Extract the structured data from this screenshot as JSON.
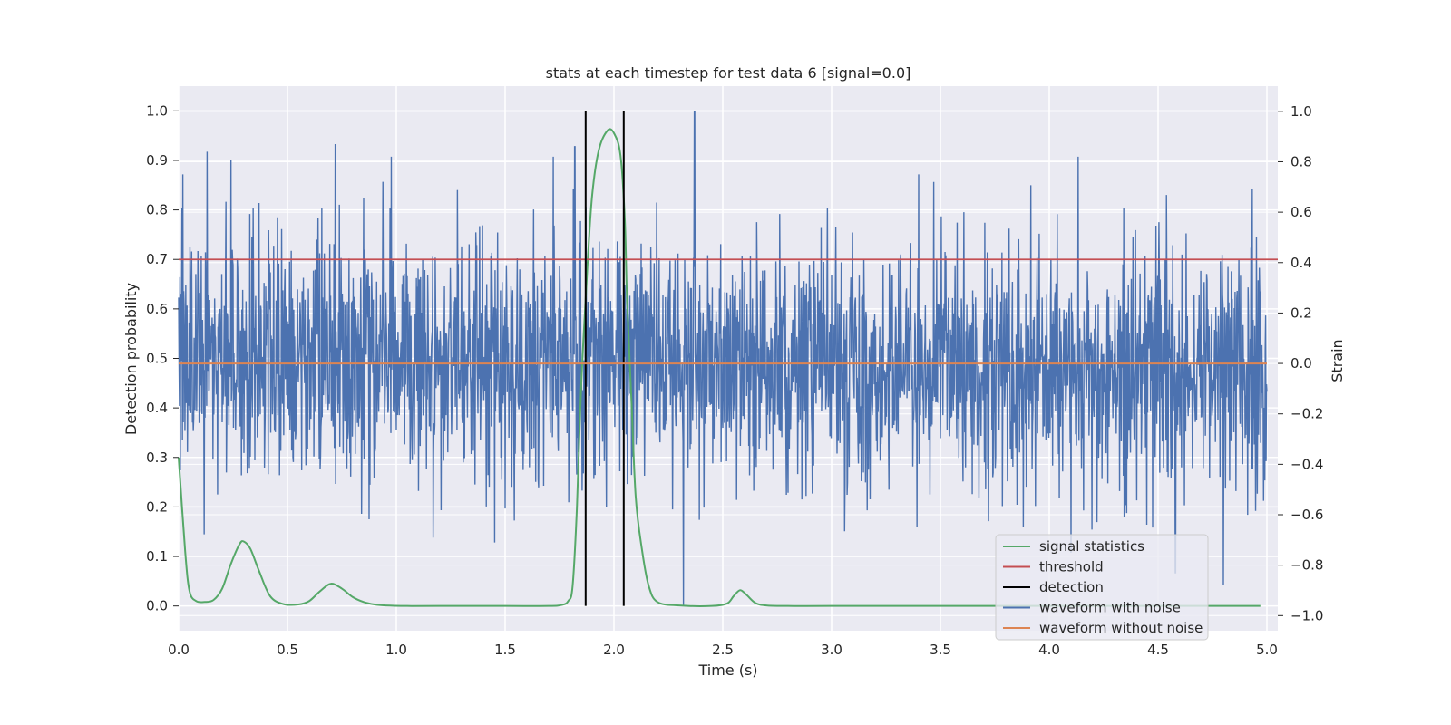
{
  "chart_data": {
    "type": "line",
    "title": "stats at each timestep for test data 6 [signal=0.0]",
    "xlabel": "Time (s)",
    "ylabel_left": "Detection probability",
    "ylabel_right": "Strain",
    "xlim": [
      0.0,
      5.05
    ],
    "ylim_left": [
      -0.05,
      1.05
    ],
    "ylim_right": [
      -1.06,
      1.1
    ],
    "x_ticks": [
      "0.0",
      "0.5",
      "1.0",
      "1.5",
      "2.0",
      "2.5",
      "3.0",
      "3.5",
      "4.0",
      "4.5",
      "5.0"
    ],
    "y_ticks_left": [
      "0.0",
      "0.1",
      "0.2",
      "0.3",
      "0.4",
      "0.5",
      "0.6",
      "0.7",
      "0.8",
      "0.9",
      "1.0"
    ],
    "y_ticks_right": [
      "−1.0",
      "−0.8",
      "−0.6",
      "−0.4",
      "−0.2",
      "0.0",
      "0.2",
      "0.4",
      "0.6",
      "0.8",
      "1.0"
    ],
    "grid": true,
    "legend_position": "lower-right",
    "series": [
      {
        "name": "signal statistics",
        "color": "#55a868",
        "axis": "left",
        "x": [
          0.0,
          0.03,
          0.05,
          0.08,
          0.12,
          0.16,
          0.2,
          0.24,
          0.28,
          0.3,
          0.33,
          0.37,
          0.42,
          0.48,
          0.55,
          0.6,
          0.65,
          0.7,
          0.75,
          0.8,
          0.85,
          0.9,
          0.95,
          1.05,
          1.2,
          1.5,
          1.7,
          1.76,
          1.79,
          1.81,
          1.83,
          1.85,
          1.88,
          1.9,
          1.93,
          1.97,
          2.0,
          2.03,
          2.05,
          2.06,
          2.08,
          2.1,
          2.13,
          2.16,
          2.2,
          2.3,
          2.45,
          2.52,
          2.55,
          2.58,
          2.61,
          2.65,
          2.7,
          2.8,
          3.0,
          4.0,
          4.97
        ],
        "y": [
          0.3,
          0.11,
          0.03,
          0.01,
          0.008,
          0.012,
          0.035,
          0.085,
          0.125,
          0.13,
          0.115,
          0.07,
          0.02,
          0.004,
          0.003,
          0.01,
          0.03,
          0.045,
          0.035,
          0.018,
          0.008,
          0.003,
          0.001,
          0.0,
          0.0,
          0.0,
          0.0,
          0.002,
          0.01,
          0.04,
          0.2,
          0.45,
          0.7,
          0.83,
          0.92,
          0.96,
          0.955,
          0.91,
          0.78,
          0.62,
          0.42,
          0.22,
          0.11,
          0.04,
          0.008,
          0.001,
          0.0,
          0.005,
          0.02,
          0.032,
          0.022,
          0.006,
          0.001,
          0.0,
          0.0,
          0.0,
          0.0
        ]
      },
      {
        "name": "threshold",
        "color": "#c44e52",
        "axis": "left",
        "x": [
          0.0,
          5.05
        ],
        "y": [
          0.7,
          0.7
        ]
      },
      {
        "name": "detection",
        "color": "#000000",
        "axis": "left",
        "vlines": [
          1.87,
          2.045
        ],
        "y_range": [
          0.0,
          1.0
        ]
      },
      {
        "name": "waveform with noise",
        "color": "#4c72b0",
        "axis": "right",
        "x_range": [
          0.0,
          5.0
        ],
        "y_spread": [
          -0.96,
          1.0
        ],
        "notable_spikes": [
          {
            "x": 0.02,
            "y": 0.75
          },
          {
            "x": 0.13,
            "y": 0.84
          },
          {
            "x": 0.72,
            "y": 0.87
          },
          {
            "x": 1.82,
            "y": 0.86
          },
          {
            "x": 2.32,
            "y": -0.96
          },
          {
            "x": 2.37,
            "y": 1.0
          },
          {
            "x": 3.4,
            "y": 0.75
          },
          {
            "x": 4.1,
            "y": -0.75
          },
          {
            "x": 4.58,
            "y": -0.83
          },
          {
            "x": 4.8,
            "y": -0.88
          }
        ]
      },
      {
        "name": "waveform without noise",
        "color": "#dd8452",
        "axis": "right",
        "x": [
          0.0,
          5.0
        ],
        "y": [
          0.0,
          0.0
        ]
      }
    ]
  }
}
